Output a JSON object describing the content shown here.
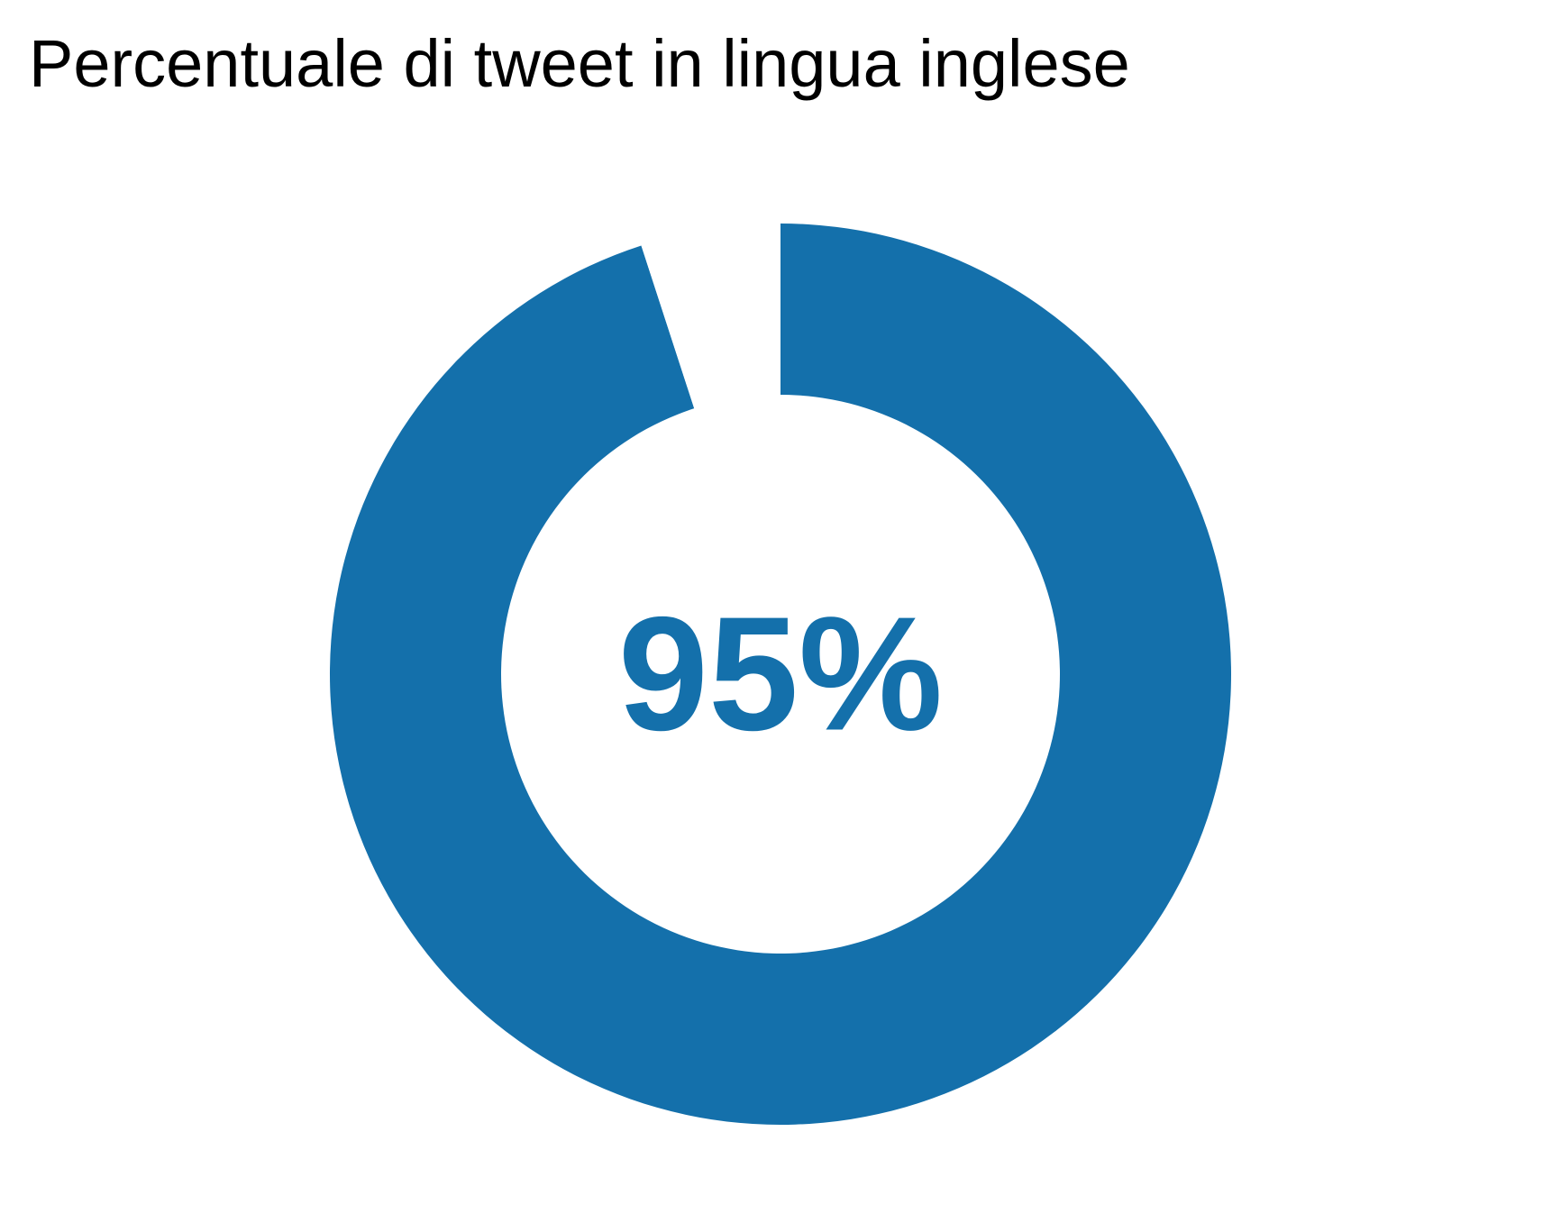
{
  "chart_data": {
    "type": "pie",
    "variant": "donut",
    "title": "Percentuale di tweet in lingua inglese",
    "slices": [
      {
        "value": 95,
        "color": "#1470AB"
      },
      {
        "value": 5,
        "color": "#FFFFFF"
      }
    ],
    "center_label": "95%",
    "colors": {
      "primary": "#1470AB",
      "background": "#FFFFFF",
      "title": "#000000"
    }
  }
}
